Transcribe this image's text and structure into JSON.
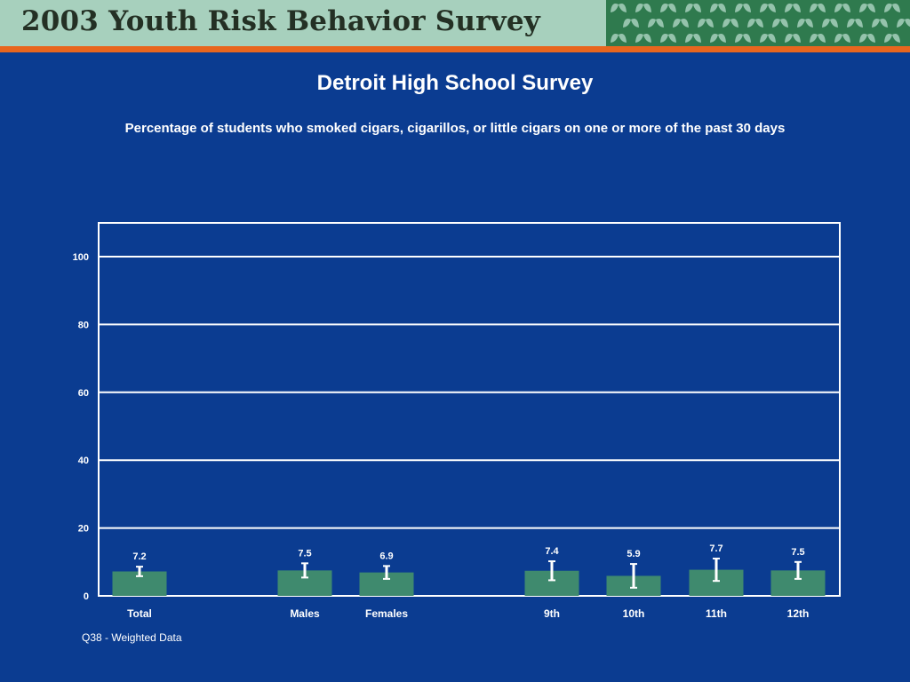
{
  "banner": {
    "title": "2003 Youth Risk Behavior Survey",
    "leaf_pattern_icon": "leaf-pattern-icon",
    "colors": {
      "background": "#a7d0bd",
      "stripe": "#e8661e",
      "pattern_bg": "#2f7a4e",
      "pattern_leaf": "#a7d0bd"
    }
  },
  "slide": {
    "title": "Detroit High School Survey",
    "subtitle": "Percentage of students who smoked cigars, cigarillos, or little cigars on one or more of the past 30 days",
    "footnote": "Q38 - Weighted Data",
    "background_color": "#0b3c91"
  },
  "chart_data": {
    "type": "bar",
    "categories": [
      "Total",
      "Males",
      "Females",
      "9th",
      "10th",
      "11th",
      "12th"
    ],
    "values": [
      7.2,
      7.5,
      6.9,
      7.4,
      5.9,
      7.7,
      7.5
    ],
    "value_labels": [
      "7.2",
      "7.5",
      "6.9",
      "7.4",
      "5.9",
      "7.7",
      "7.5"
    ],
    "error_bars": [
      [
        5.8,
        8.6
      ],
      [
        5.4,
        9.6
      ],
      [
        5.0,
        8.8
      ],
      [
        4.6,
        10.2
      ],
      [
        2.4,
        9.4
      ],
      [
        4.4,
        11.0
      ],
      [
        5.0,
        10.0
      ]
    ],
    "ylim": [
      0,
      100
    ],
    "yticks": [
      0,
      20,
      40,
      60,
      80,
      100
    ],
    "grid": true,
    "legend": "none",
    "bar_color": "#3f8a6e",
    "grid_color": "#ffffff"
  }
}
